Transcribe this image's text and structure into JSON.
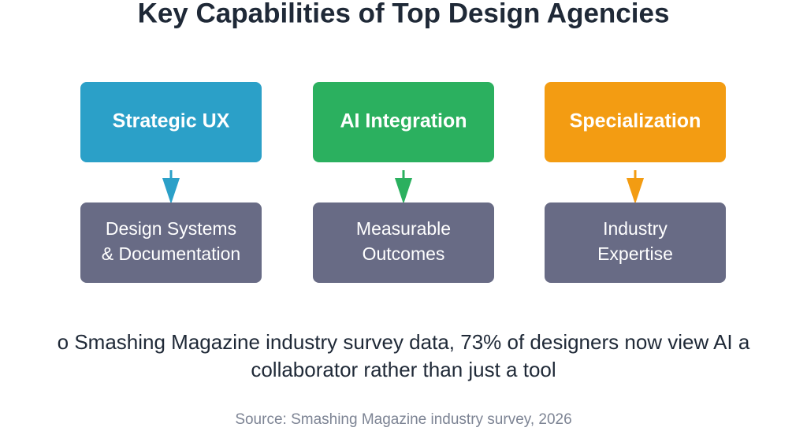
{
  "title": "Key Capabilities of Top Design Agencies",
  "columns": [
    {
      "label": "Strategic UX",
      "color": "#2ba0c8",
      "detail": [
        "Design Systems",
        "& Documentation"
      ]
    },
    {
      "label": "AI Integration",
      "color": "#2bb05f",
      "detail": [
        "Measurable",
        "Outcomes"
      ]
    },
    {
      "label": "Specialization",
      "color": "#f39c12",
      "detail": [
        "Industry",
        "Expertise"
      ]
    }
  ],
  "caption": [
    "o Smashing Magazine industry survey data, 73% of designers now view AI a",
    "collaborator rather than just a tool"
  ],
  "source": "Source: Smashing Magazine industry survey, 2026"
}
